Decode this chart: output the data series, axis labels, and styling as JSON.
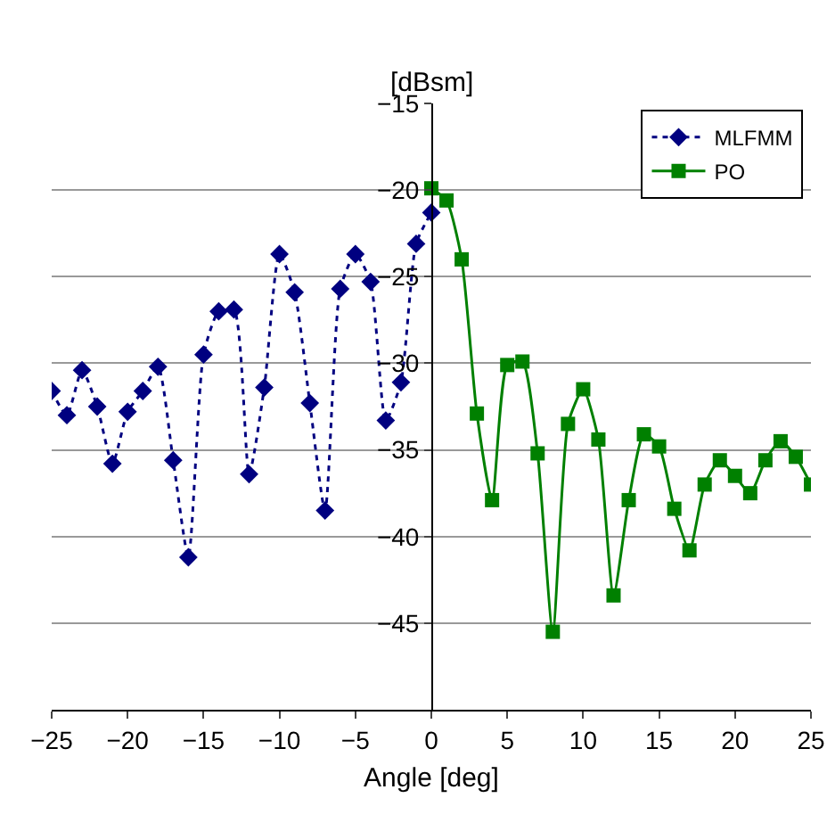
{
  "chart_data": {
    "type": "line",
    "ylabel": "[dBsm]",
    "xlabel": "Angle [deg]",
    "xlim": [
      -25,
      25
    ],
    "xticks": [
      -25,
      -20,
      -15,
      -10,
      -5,
      0,
      5,
      10,
      15,
      20,
      25
    ],
    "ylim": [
      -50,
      -15
    ],
    "yticks": [
      -15,
      -20,
      -25,
      -30,
      -35,
      -40,
      -45
    ],
    "grid": "y",
    "legend": "top right",
    "series": [
      {
        "name": "MLFMM",
        "color": "#000080",
        "marker": "diamond",
        "line_style": "dotted",
        "x": [
          -25,
          -24,
          -23,
          -22,
          -21,
          -20,
          -19,
          -18,
          -17,
          -16,
          -15,
          -14,
          -13,
          -12,
          -11,
          -10,
          -9,
          -8,
          -7,
          -6,
          -5,
          -4,
          -3,
          -2,
          -1,
          0
        ],
        "values": [
          -31.6,
          -33.0,
          -30.4,
          -32.5,
          -35.8,
          -32.8,
          -31.6,
          -30.2,
          -35.6,
          -41.2,
          -29.5,
          -27.0,
          -26.9,
          -36.4,
          -31.4,
          -23.7,
          -25.9,
          -32.3,
          -38.5,
          -25.7,
          -23.7,
          -25.3,
          -33.3,
          -31.1,
          -23.1,
          -21.3
        ]
      },
      {
        "name": "PO",
        "color": "#008000",
        "marker": "square",
        "line_style": "solid",
        "x": [
          0,
          1,
          2,
          3,
          4,
          5,
          6,
          7,
          8,
          9,
          10,
          11,
          12,
          13,
          14,
          15,
          16,
          17,
          18,
          19,
          20,
          21,
          22,
          23,
          24,
          25
        ],
        "values": [
          -19.9,
          -20.6,
          -24.0,
          -32.9,
          -37.9,
          -30.1,
          -29.9,
          -35.2,
          -45.5,
          -33.5,
          -31.5,
          -34.4,
          -43.4,
          -37.9,
          -34.1,
          -34.8,
          -38.4,
          -40.8,
          -37.0,
          -35.6,
          -36.5,
          -37.5,
          -35.6,
          -34.5,
          -35.4,
          -37.0
        ]
      }
    ]
  }
}
